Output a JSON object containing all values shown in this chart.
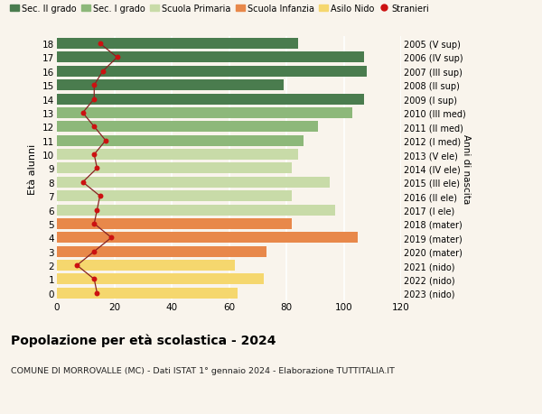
{
  "ages": [
    0,
    1,
    2,
    3,
    4,
    5,
    6,
    7,
    8,
    9,
    10,
    11,
    12,
    13,
    14,
    15,
    16,
    17,
    18
  ],
  "right_labels": [
    "2023 (nido)",
    "2022 (nido)",
    "2021 (nido)",
    "2020 (mater)",
    "2019 (mater)",
    "2018 (mater)",
    "2017 (I ele)",
    "2016 (II ele)",
    "2015 (III ele)",
    "2014 (IV ele)",
    "2013 (V ele)",
    "2012 (I med)",
    "2011 (II med)",
    "2010 (III med)",
    "2009 (I sup)",
    "2008 (II sup)",
    "2007 (III sup)",
    "2006 (IV sup)",
    "2005 (V sup)"
  ],
  "bar_values": [
    63,
    72,
    62,
    73,
    105,
    82,
    97,
    82,
    95,
    82,
    84,
    86,
    91,
    103,
    107,
    79,
    108,
    107,
    84
  ],
  "foreigners": [
    14,
    13,
    7,
    13,
    19,
    13,
    14,
    15,
    9,
    14,
    13,
    17,
    13,
    9,
    13,
    13,
    16,
    21,
    15
  ],
  "bar_colors": [
    "#f5d76e",
    "#f5d76e",
    "#f5d76e",
    "#e8884a",
    "#e8884a",
    "#e8884a",
    "#c8dba8",
    "#c8dba8",
    "#c8dba8",
    "#c8dba8",
    "#c8dba8",
    "#8db87a",
    "#8db87a",
    "#8db87a",
    "#4a7c4e",
    "#4a7c4e",
    "#4a7c4e",
    "#4a7c4e",
    "#4a7c4e"
  ],
  "legend_labels": [
    "Sec. II grado",
    "Sec. I grado",
    "Scuola Primaria",
    "Scuola Infanzia",
    "Asilo Nido",
    "Stranieri"
  ],
  "legend_colors": [
    "#4a7c4e",
    "#8db87a",
    "#c8dba8",
    "#e8884a",
    "#f5d76e",
    "#cc2222"
  ],
  "title": "Popolazione per età scolastica - 2024",
  "subtitle": "COMUNE DI MORROVALLE (MC) - Dati ISTAT 1° gennaio 2024 - Elaborazione TUTTITALIA.IT",
  "ylabel": "Età alunni",
  "right_ylabel": "Anni di nascita",
  "xlim": [
    0,
    120
  ],
  "xticks": [
    0,
    20,
    40,
    60,
    80,
    100,
    120
  ],
  "background_color": "#f9f4ec",
  "bar_height": 0.78,
  "stranieri_color": "#cc1111",
  "stranieri_line_color": "#882222"
}
